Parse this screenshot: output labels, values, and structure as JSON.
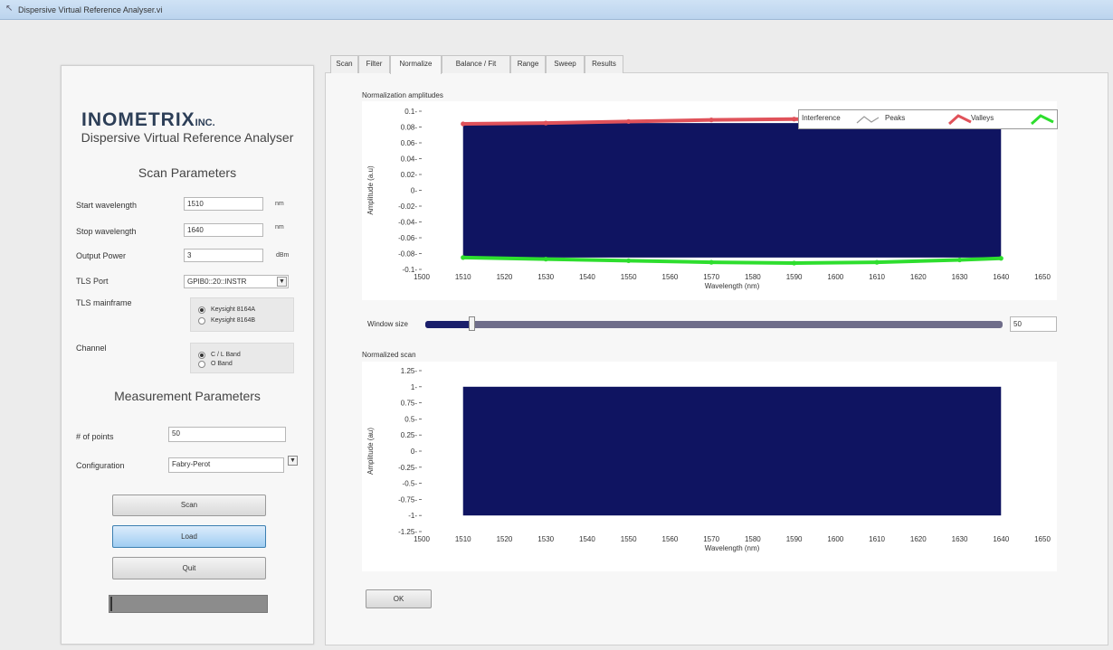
{
  "window": {
    "title": "Dispersive Virtual Reference Analyser.vi"
  },
  "left_panel": {
    "logo": "INOMETRIX",
    "logo_suffix": "INC.",
    "app_title": "Dispersive Virtual Reference Analyser",
    "scan_params_heading": "Scan Parameters",
    "start_wavelength": {
      "label": "Start wavelength",
      "value": "1510",
      "unit": "nm"
    },
    "stop_wavelength": {
      "label": "Stop wavelength",
      "value": "1640",
      "unit": "nm"
    },
    "output_power": {
      "label": "Output Power",
      "value": "3",
      "unit": "dBm"
    },
    "tls_port": {
      "label": "TLS Port",
      "value": "GPIB0::20::INSTR"
    },
    "tls_mainframe": {
      "label": "TLS mainframe",
      "options": [
        "Keysight 8164A",
        "Keysight 8164B"
      ],
      "selected": 0
    },
    "channel": {
      "label": "Channel",
      "options": [
        "C / L Band",
        "O Band"
      ],
      "selected": 0
    },
    "measurement_heading": "Measurement Parameters",
    "num_points": {
      "label": "# of points",
      "value": "50"
    },
    "configuration": {
      "label": "Configuration",
      "value": "Fabry-Perot"
    },
    "buttons": {
      "scan": "Scan",
      "load": "Load",
      "quit": "Quit"
    }
  },
  "tabs": [
    "Scan",
    "Filter",
    "Normalize",
    "Balance / Fit",
    "Range",
    "Sweep",
    "Results"
  ],
  "selected_tab": "Normalize",
  "legend": {
    "interference": "Interference",
    "peaks": "Peaks",
    "valleys": "Valleys"
  },
  "window_size": {
    "label": "Window size",
    "value": "50",
    "slider_fraction": 0.08
  },
  "ok_button": "OK",
  "colors": {
    "fill": "#0f1461",
    "peaks": "#e0525a",
    "valleys": "#2ede2e",
    "accent": "#9fcdf2"
  },
  "chart_data": [
    {
      "type": "area",
      "title": "Normalization amplitudes",
      "xlabel": "Wavelength (nm)",
      "ylabel": "Amplitude (a.u)",
      "xlim": [
        1500,
        1650
      ],
      "ylim": [
        -0.1,
        0.1
      ],
      "x_ticks": [
        "1500",
        "1510",
        "1520",
        "1530",
        "1540",
        "1550",
        "1560",
        "1570",
        "1580",
        "1590",
        "1600",
        "1610",
        "1620",
        "1630",
        "1640",
        "1650"
      ],
      "y_ticks": [
        "0.1",
        "0.08",
        "0.06",
        "0.04",
        "0.02",
        "0",
        "-0.02",
        "-0.04",
        "-0.06",
        "-0.08",
        "-0.1"
      ],
      "series": [
        {
          "name": "Interference",
          "x_range": [
            1510,
            1640
          ],
          "lower": -0.085,
          "upper": 0.085
        },
        {
          "name": "Peaks",
          "x": [
            1510,
            1530,
            1550,
            1570,
            1590,
            1610,
            1630,
            1640
          ],
          "values": [
            0.084,
            0.085,
            0.087,
            0.089,
            0.09,
            0.089,
            0.087,
            0.085
          ]
        },
        {
          "name": "Valleys",
          "x": [
            1510,
            1530,
            1550,
            1570,
            1590,
            1610,
            1630,
            1640
          ],
          "values": [
            -0.085,
            -0.087,
            -0.089,
            -0.091,
            -0.092,
            -0.091,
            -0.088,
            -0.086
          ]
        }
      ],
      "legend_position": "top-right"
    },
    {
      "type": "area",
      "title": "Normalized scan",
      "xlabel": "Wavelength (nm)",
      "ylabel": "Amplitude (au)",
      "xlim": [
        1500,
        1650
      ],
      "ylim": [
        -1.25,
        1.25
      ],
      "x_ticks": [
        "1500",
        "1510",
        "1520",
        "1530",
        "1540",
        "1550",
        "1560",
        "1570",
        "1580",
        "1590",
        "1600",
        "1610",
        "1620",
        "1630",
        "1640",
        "1650"
      ],
      "y_ticks": [
        "1.25",
        "1",
        "0.75",
        "0.5",
        "0.25",
        "0",
        "-0.25",
        "-0.5",
        "-0.75",
        "-1",
        "-1.25"
      ],
      "series": [
        {
          "name": "",
          "x_range": [
            1510,
            1640
          ],
          "lower": -1,
          "upper": 1
        }
      ]
    }
  ]
}
